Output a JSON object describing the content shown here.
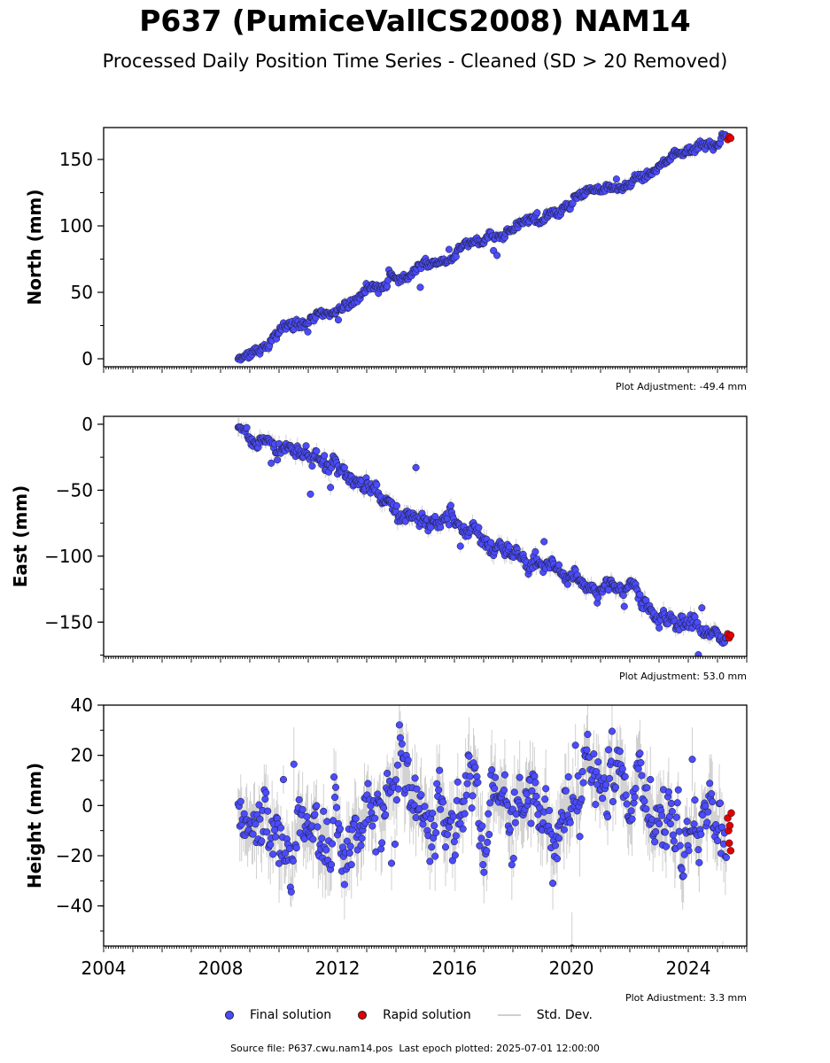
{
  "header": {
    "title": "P637 (PumiceVallCS2008) NAM14",
    "subtitle": "Processed Daily Position Time Series - Cleaned (SD > 20 Removed)"
  },
  "legend": {
    "final": "Final solution",
    "rapid": "Rapid solution",
    "std": "Std. Dev."
  },
  "footer": {
    "source": "Source file: P637.cwu.nam14.pos",
    "last_epoch": "Last epoch plotted: 2025-07-01 12:00:00"
  },
  "colors": {
    "final": "#4b4bff",
    "rapid": "#e00000",
    "std": "#b0b0b0"
  },
  "chart_data": [
    {
      "type": "scatter",
      "ylabel": "North (mm)",
      "adjustment": "Plot Adjustment: -49.4 mm",
      "xlim": [
        2004.0,
        2026.0
      ],
      "ylim": [
        -6,
        174
      ],
      "yticks": [
        0,
        50,
        100,
        150
      ],
      "x_start": 2008.6,
      "x_end": 2025.3,
      "series": [
        {
          "name": "Final solution",
          "trend": [
            [
              2008.6,
              -1
            ],
            [
              2012.0,
              38
            ],
            [
              2016.0,
              80
            ],
            [
              2020.0,
              118
            ],
            [
              2025.3,
              166
            ]
          ],
          "scatter_sd": 2.5
        },
        {
          "name": "Rapid solution",
          "x": [
            2025.35,
            2025.4,
            2025.45
          ],
          "y": [
            165,
            167,
            166
          ]
        }
      ]
    },
    {
      "type": "scatter",
      "ylabel": "East (mm)",
      "adjustment": "Plot Adjustment: 53.0 mm",
      "xlim": [
        2004.0,
        2026.0
      ],
      "ylim": [
        -176,
        6
      ],
      "yticks": [
        0,
        -50,
        -100,
        -150
      ],
      "x_start": 2008.6,
      "x_end": 2025.3,
      "series": [
        {
          "name": "Final solution",
          "trend": [
            [
              2008.6,
              -3
            ],
            [
              2012.0,
              -35
            ],
            [
              2016.0,
              -80
            ],
            [
              2020.0,
              -115
            ],
            [
              2025.3,
              -160
            ]
          ],
          "scatter_sd": 4
        },
        {
          "name": "Rapid solution",
          "x": [
            2025.35,
            2025.4,
            2025.45
          ],
          "y": [
            -159,
            -162,
            -160
          ]
        }
      ]
    },
    {
      "type": "scatter",
      "ylabel": "Height (mm)",
      "adjustment": "Plot Adjustment: 3.3 mm",
      "xlim": [
        2004.0,
        2026.0
      ],
      "ylim": [
        -56,
        40
      ],
      "yticks": [
        40,
        20,
        0,
        -20,
        -40
      ],
      "xticks": [
        2004,
        2008,
        2012,
        2016,
        2020,
        2024
      ],
      "x_start": 2008.6,
      "x_end": 2025.3,
      "series": [
        {
          "name": "Final solution",
          "trend": [
            [
              2008.6,
              -2
            ],
            [
              2026.0,
              -2
            ]
          ],
          "scatter_sd": 9
        },
        {
          "name": "Rapid solution",
          "x": [
            2025.35,
            2025.38,
            2025.4,
            2025.42,
            2025.45,
            2025.47
          ],
          "y": [
            -5,
            -10,
            -15,
            -8,
            -18,
            -3
          ]
        }
      ]
    }
  ]
}
